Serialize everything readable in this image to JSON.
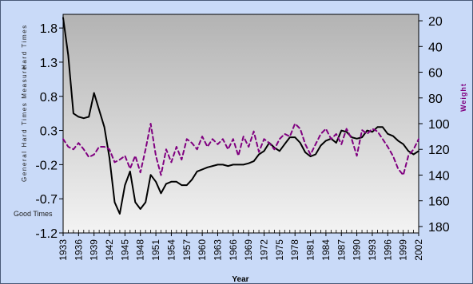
{
  "colors": {
    "page_background": "#c9daf8",
    "plot_gradient_top": "#b3b3b3",
    "plot_gradient_bottom": "#f3f3f3",
    "hard_times_line": "#000000",
    "weight_line": "#800080"
  },
  "chart_data": {
    "type": "line",
    "title": "",
    "xlabel": "Year",
    "ylabel_left": "General Hard Times Measure",
    "ylabel_left_top": "Hard Times",
    "ylabel_left_bottom": "Good Times",
    "ylabel_right": "Weight",
    "grid": false,
    "legend": "none",
    "x_range": [
      1933,
      2002
    ],
    "y_left_range": [
      -1.2,
      2.0
    ],
    "y_right_range": [
      15,
      185
    ],
    "y_right_inverted": true,
    "x_tick_labels": [
      "1933",
      "1936",
      "1939",
      "1942",
      "1945",
      "1948",
      "1951",
      "1954",
      "1957",
      "1960",
      "1963",
      "1966",
      "1969",
      "1972",
      "1975",
      "1978",
      "1981",
      "1984",
      "1987",
      "1990",
      "1993",
      "1996",
      "1999",
      "2002"
    ],
    "y_left_tick_labels": [
      "1.8",
      "1.3",
      "0.8",
      "0.3",
      "-0.2",
      "-0.7",
      "-1.2"
    ],
    "y_left_tick_values": [
      1.8,
      1.3,
      0.8,
      0.3,
      -0.2,
      -0.7,
      -1.2
    ],
    "y_right_tick_labels": [
      "20",
      "40",
      "60",
      "80",
      "100",
      "120",
      "140",
      "160",
      "180"
    ],
    "y_right_tick_values": [
      20,
      40,
      60,
      80,
      100,
      120,
      140,
      160,
      180
    ],
    "series": [
      {
        "style": "solid",
        "axis": "left",
        "points": [
          [
            1933,
            1.95
          ],
          [
            1934,
            1.4
          ],
          [
            1935,
            0.55
          ],
          [
            1936,
            0.5
          ],
          [
            1937,
            0.48
          ],
          [
            1938,
            0.5
          ],
          [
            1939,
            0.85
          ],
          [
            1940,
            0.6
          ],
          [
            1941,
            0.35
          ],
          [
            1942,
            -0.1
          ],
          [
            1943,
            -0.75
          ],
          [
            1944,
            -0.92
          ],
          [
            1945,
            -0.5
          ],
          [
            1946,
            -0.3
          ],
          [
            1947,
            -0.75
          ],
          [
            1948,
            -0.85
          ],
          [
            1949,
            -0.75
          ],
          [
            1950,
            -0.35
          ],
          [
            1951,
            -0.45
          ],
          [
            1952,
            -0.62
          ],
          [
            1953,
            -0.48
          ],
          [
            1954,
            -0.45
          ],
          [
            1955,
            -0.45
          ],
          [
            1956,
            -0.5
          ],
          [
            1957,
            -0.5
          ],
          [
            1958,
            -0.42
          ],
          [
            1959,
            -0.3
          ],
          [
            1960,
            -0.27
          ],
          [
            1961,
            -0.24
          ],
          [
            1962,
            -0.22
          ],
          [
            1963,
            -0.2
          ],
          [
            1964,
            -0.2
          ],
          [
            1965,
            -0.22
          ],
          [
            1966,
            -0.2
          ],
          [
            1967,
            -0.2
          ],
          [
            1968,
            -0.2
          ],
          [
            1969,
            -0.18
          ],
          [
            1970,
            -0.15
          ],
          [
            1971,
            -0.05
          ],
          [
            1972,
            0.0
          ],
          [
            1973,
            0.12
          ],
          [
            1974,
            0.05
          ],
          [
            1975,
            0.0
          ],
          [
            1976,
            0.1
          ],
          [
            1977,
            0.2
          ],
          [
            1978,
            0.2
          ],
          [
            1979,
            0.12
          ],
          [
            1980,
            -0.02
          ],
          [
            1981,
            -0.08
          ],
          [
            1982,
            -0.05
          ],
          [
            1983,
            0.08
          ],
          [
            1984,
            0.15
          ],
          [
            1985,
            0.18
          ],
          [
            1986,
            0.12
          ],
          [
            1987,
            0.3
          ],
          [
            1988,
            0.28
          ],
          [
            1989,
            0.2
          ],
          [
            1990,
            0.18
          ],
          [
            1991,
            0.2
          ],
          [
            1992,
            0.3
          ],
          [
            1993,
            0.28
          ],
          [
            1994,
            0.35
          ],
          [
            1995,
            0.35
          ],
          [
            1996,
            0.25
          ],
          [
            1997,
            0.22
          ],
          [
            1998,
            0.15
          ],
          [
            1999,
            0.1
          ],
          [
            2000,
            0.0
          ],
          [
            2001,
            -0.05
          ],
          [
            2002,
            0.0
          ]
        ]
      },
      {
        "style": "dashed",
        "axis": "right",
        "points": [
          [
            1933,
            112
          ],
          [
            1934,
            118
          ],
          [
            1935,
            120
          ],
          [
            1936,
            115
          ],
          [
            1937,
            120
          ],
          [
            1938,
            126
          ],
          [
            1939,
            124
          ],
          [
            1940,
            118
          ],
          [
            1941,
            118
          ],
          [
            1942,
            120
          ],
          [
            1943,
            130
          ],
          [
            1944,
            128
          ],
          [
            1945,
            125
          ],
          [
            1946,
            135
          ],
          [
            1947,
            125
          ],
          [
            1948,
            138
          ],
          [
            1949,
            120
          ],
          [
            1950,
            100
          ],
          [
            1951,
            125
          ],
          [
            1952,
            140
          ],
          [
            1953,
            120
          ],
          [
            1954,
            130
          ],
          [
            1955,
            118
          ],
          [
            1956,
            128
          ],
          [
            1957,
            112
          ],
          [
            1958,
            115
          ],
          [
            1959,
            120
          ],
          [
            1960,
            110
          ],
          [
            1961,
            118
          ],
          [
            1962,
            112
          ],
          [
            1963,
            116
          ],
          [
            1964,
            112
          ],
          [
            1965,
            120
          ],
          [
            1966,
            112
          ],
          [
            1967,
            125
          ],
          [
            1968,
            110
          ],
          [
            1969,
            118
          ],
          [
            1970,
            106
          ],
          [
            1971,
            122
          ],
          [
            1972,
            112
          ],
          [
            1973,
            115
          ],
          [
            1974,
            120
          ],
          [
            1975,
            112
          ],
          [
            1976,
            108
          ],
          [
            1977,
            110
          ],
          [
            1978,
            100
          ],
          [
            1979,
            104
          ],
          [
            1980,
            116
          ],
          [
            1981,
            124
          ],
          [
            1982,
            116
          ],
          [
            1983,
            108
          ],
          [
            1984,
            104
          ],
          [
            1985,
            112
          ],
          [
            1986,
            108
          ],
          [
            1987,
            116
          ],
          [
            1988,
            104
          ],
          [
            1989,
            112
          ],
          [
            1990,
            125
          ],
          [
            1991,
            105
          ],
          [
            1992,
            108
          ],
          [
            1993,
            104
          ],
          [
            1994,
            106
          ],
          [
            1995,
            112
          ],
          [
            1996,
            118
          ],
          [
            1997,
            125
          ],
          [
            1998,
            135
          ],
          [
            1999,
            140
          ],
          [
            2000,
            125
          ],
          [
            2001,
            120
          ],
          [
            2002,
            112
          ]
        ]
      }
    ]
  }
}
